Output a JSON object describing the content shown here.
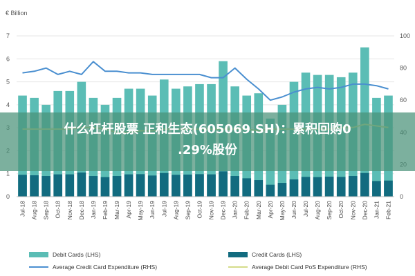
{
  "chart_data": {
    "type": "bar",
    "unit_label": "€ Billion",
    "categories": [
      "Jul-18",
      "Aug-18",
      "Sep-18",
      "Oct-18",
      "Nov-18",
      "Dec-18",
      "Jan-19",
      "Feb-19",
      "Mar-19",
      "Apr-19",
      "May-19",
      "Jun-19",
      "Jul-19",
      "Aug-19",
      "Sep-19",
      "Oct-19",
      "Nov-19",
      "Dec-19",
      "Jan-20",
      "Feb-20",
      "Mar-20",
      "Apr-20",
      "May-20",
      "Jun-20",
      "Jul-20",
      "Aug-20",
      "Sep-20",
      "Oct-20",
      "Nov-20",
      "Dec-20",
      "Jan-21",
      "Feb-21"
    ],
    "ylim_left": [
      0,
      7
    ],
    "yticks_left": [
      0,
      1,
      2,
      3,
      4,
      5,
      6,
      7
    ],
    "ylim_right": [
      0,
      100
    ],
    "yticks_right": [
      0,
      20,
      40,
      60,
      80,
      100
    ],
    "series": [
      {
        "name": "Debit Cards (LHS)",
        "type": "bar",
        "axis": "left",
        "color": "#5bbdb5",
        "values": [
          4.4,
          4.3,
          4.0,
          4.6,
          4.6,
          5.0,
          4.3,
          4.0,
          4.3,
          4.7,
          4.7,
          4.4,
          5.1,
          4.7,
          4.8,
          4.9,
          4.9,
          5.9,
          4.8,
          4.4,
          4.5,
          3.4,
          4.0,
          5.0,
          5.4,
          5.3,
          5.3,
          5.2,
          5.4,
          6.5,
          4.3,
          4.4
        ]
      },
      {
        "name": "Credit Cards (LHS)",
        "type": "bar",
        "axis": "left",
        "color": "#126b7f",
        "values": [
          0.95,
          0.93,
          0.9,
          0.97,
          0.97,
          1.05,
          0.9,
          0.85,
          0.9,
          0.97,
          0.98,
          0.92,
          1.03,
          0.95,
          0.96,
          0.98,
          0.97,
          1.1,
          0.9,
          0.8,
          0.72,
          0.52,
          0.6,
          0.75,
          0.86,
          0.85,
          0.87,
          0.86,
          0.9,
          1.03,
          0.68,
          0.7
        ]
      },
      {
        "name": "Average Credit Card Expenditure (RHS)",
        "type": "line",
        "axis": "right",
        "color": "#4a8fd0",
        "values": [
          77,
          78,
          80,
          76,
          78,
          76,
          84,
          78,
          78,
          77,
          77,
          76,
          76,
          76,
          76,
          76,
          74,
          74,
          80,
          73,
          67,
          60,
          62,
          65,
          67,
          68,
          67,
          68,
          70,
          70,
          69,
          67
        ]
      },
      {
        "name": "Average Debit Card PoS Expenditure (RHS)",
        "type": "line",
        "axis": "right",
        "color": "#d4dc88",
        "values": [
          42,
          42,
          42,
          42,
          42,
          43,
          43,
          42,
          40,
          40,
          41,
          41,
          42,
          42,
          42,
          42,
          42,
          42,
          42,
          42,
          41,
          42,
          42,
          42,
          42,
          42,
          42,
          43,
          43,
          45,
          44,
          43
        ]
      }
    ]
  },
  "overlay": {
    "line1": "什么杠杆股票 正和生态(605069.SH)：累积回购0",
    "line2": ".29%股份"
  }
}
